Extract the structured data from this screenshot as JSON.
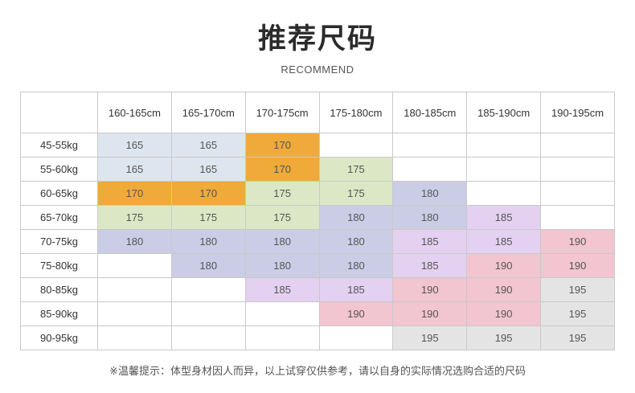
{
  "title": "推荐尺码",
  "subtitle": "RECOMMEND",
  "colors": {
    "blue": "#dde6ef",
    "orange": "#efaa39",
    "green": "#dce8c5",
    "violet": "#cbcde7",
    "lilac": "#e4d0f1",
    "pink": "#f2c5d1",
    "grey": "#e4e4e4"
  },
  "heights": [
    "160-165cm",
    "165-170cm",
    "170-175cm",
    "175-180cm",
    "180-185cm",
    "185-190cm",
    "190-195cm"
  ],
  "weights": [
    "45-55kg",
    "55-60kg",
    "60-65kg",
    "65-70kg",
    "70-75kg",
    "75-80kg",
    "80-85kg",
    "85-90kg",
    "90-95kg"
  ],
  "sizes": [
    [
      "165",
      "165",
      "170",
      "",
      "",
      "",
      ""
    ],
    [
      "165",
      "165",
      "170",
      "175",
      "",
      "",
      ""
    ],
    [
      "170",
      "170",
      "175",
      "175",
      "180",
      "",
      ""
    ],
    [
      "175",
      "175",
      "175",
      "180",
      "180",
      "185",
      ""
    ],
    [
      "180",
      "180",
      "180",
      "180",
      "185",
      "185",
      "190"
    ],
    [
      "",
      "180",
      "180",
      "180",
      "185",
      "190",
      "190"
    ],
    [
      "",
      "",
      "185",
      "185",
      "190",
      "190",
      "195"
    ],
    [
      "",
      "",
      "",
      "190",
      "190",
      "190",
      "195"
    ],
    [
      "",
      "",
      "",
      "",
      "195",
      "195",
      "195"
    ]
  ],
  "note": "※温馨提示：体型身材因人而异，以上试穿仅供参考，请以自身的实际情况选购合适的尺码"
}
